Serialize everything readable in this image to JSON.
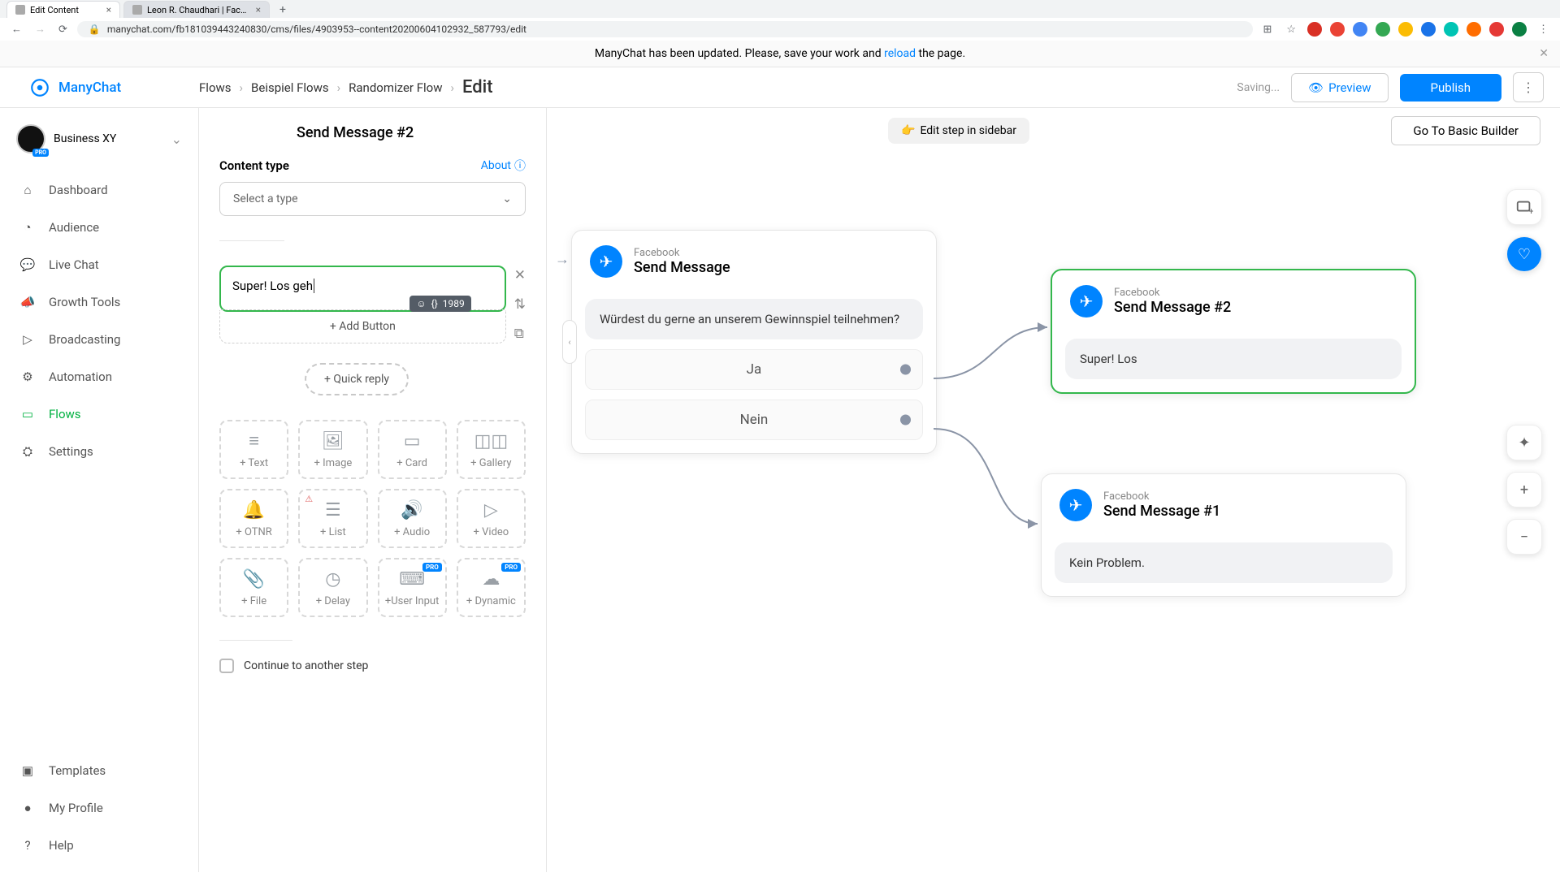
{
  "browser": {
    "tabs": [
      {
        "title": "Edit Content",
        "active": true
      },
      {
        "title": "Leon R. Chaudhari | Facebook",
        "active": false
      }
    ],
    "url": "manychat.com/fb181039443240830/cms/files/4903953--content20200604102932_587793/edit"
  },
  "notification": {
    "prefix": "ManyChat has been updated. Please, save your work and ",
    "link": "reload",
    "suffix": " the page."
  },
  "header": {
    "logo": "ManyChat",
    "breadcrumb": [
      "Flows",
      "Beispiel Flows",
      "Randomizer Flow",
      "Edit"
    ],
    "saving": "Saving...",
    "preview": "Preview",
    "publish": "Publish"
  },
  "workspace": {
    "name": "Business XY"
  },
  "nav": {
    "items": [
      {
        "icon": "⌂",
        "label": "Dashboard"
      },
      {
        "icon": "◔",
        "label": "Audience"
      },
      {
        "icon": "💬",
        "label": "Live Chat"
      },
      {
        "icon": "📣",
        "label": "Growth Tools"
      },
      {
        "icon": "▷",
        "label": "Broadcasting"
      },
      {
        "icon": "⚙",
        "label": "Automation"
      },
      {
        "icon": "▭",
        "label": "Flows",
        "active": true
      },
      {
        "icon": "⛭",
        "label": "Settings"
      }
    ],
    "bottom": [
      {
        "icon": "▣",
        "label": "Templates"
      },
      {
        "icon": "●",
        "label": "My Profile"
      },
      {
        "icon": "?",
        "label": "Help"
      }
    ]
  },
  "editor": {
    "title": "Send Message #2",
    "content_type_label": "Content type",
    "about": "About",
    "select_placeholder": "Select a type",
    "text_value": "Super! Los geh",
    "char_count": "1989",
    "add_button": "+ Add Button",
    "quick_reply": "+ Quick reply",
    "blocks": [
      {
        "icon": "≡",
        "label": "+ Text"
      },
      {
        "icon": "🖼",
        "label": "+ Image"
      },
      {
        "icon": "▭",
        "label": "+ Card"
      },
      {
        "icon": "◫◫",
        "label": "+ Gallery"
      },
      {
        "icon": "🔔",
        "label": "+ OTNR"
      },
      {
        "icon": "☰",
        "label": "+ List",
        "warn": true
      },
      {
        "icon": "🔊",
        "label": "+ Audio"
      },
      {
        "icon": "▷",
        "label": "+ Video"
      },
      {
        "icon": "📎",
        "label": "+ File"
      },
      {
        "icon": "◷",
        "label": "+ Delay"
      },
      {
        "icon": "⌨",
        "label": "+User Input",
        "pro": true
      },
      {
        "icon": "☁",
        "label": "+ Dynamic",
        "pro": true
      }
    ],
    "continue_label": "Continue to another step"
  },
  "canvas": {
    "edit_sidebar": "Edit step in sidebar",
    "goto_basic": "Go To Basic Builder",
    "node1": {
      "platform": "Facebook",
      "title": "Send Message",
      "msg": "Würdest du gerne an unserem Gewinnspiel teilnehmen?",
      "opt1": "Ja",
      "opt2": "Nein"
    },
    "node2": {
      "platform": "Facebook",
      "title": "Send Message #2",
      "msg": "Super! Los"
    },
    "node3": {
      "platform": "Facebook",
      "title": "Send Message #1",
      "msg": "Kein Problem."
    }
  },
  "colors": {
    "accent": "#0084ff",
    "success": "#33b74c",
    "text": "#333333",
    "muted": "#888888",
    "border": "#e5e5e5",
    "bubble_bg": "#f1f2f4"
  }
}
